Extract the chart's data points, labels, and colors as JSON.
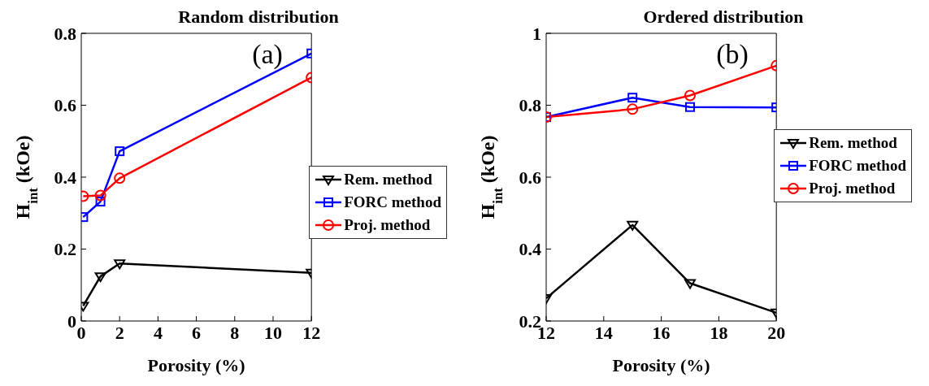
{
  "chart_data": [
    {
      "type": "line",
      "title": "Random distribution",
      "xlabel": "Porosity (%)",
      "ylabel": "H$_{int}$ (kOe)",
      "annotations": [
        "(a)"
      ],
      "x": [
        0.1,
        1,
        2,
        12
      ],
      "xlim": [
        0,
        12
      ],
      "xticks": [
        0,
        2,
        4,
        6,
        8,
        10,
        12
      ],
      "ylim": [
        0,
        0.8
      ],
      "yticks": [
        0,
        0.2,
        0.4,
        0.6,
        0.8
      ],
      "grid": false,
      "legend": "right",
      "line_style": "solid",
      "series": [
        {
          "name": "Rem. method",
          "color": "#000000",
          "marker": "triangle",
          "values": [
            0.042,
            0.124,
            0.16,
            0.134
          ]
        },
        {
          "name": "FORC method",
          "color": "#0000ff",
          "marker": "square",
          "values": [
            0.289,
            0.332,
            0.472,
            0.744
          ]
        },
        {
          "name": "Proj. method",
          "color": "#ff0000",
          "marker": "circle",
          "values": [
            0.347,
            0.349,
            0.397,
            0.677
          ]
        }
      ]
    },
    {
      "type": "line",
      "title": "Ordered distribution",
      "xlabel": "Porosity (%)",
      "ylabel": "H$_{int}$ (kOe)",
      "annotations": [
        "(b)"
      ],
      "x": [
        12,
        15,
        17,
        20
      ],
      "xlim": [
        12,
        20
      ],
      "xticks": [
        12,
        14,
        16,
        18,
        20
      ],
      "ylim": [
        0.2,
        1
      ],
      "yticks": [
        0.2,
        0.4,
        0.6,
        0.8,
        1
      ],
      "grid": false,
      "legend": "top right",
      "line_style": "solid",
      "series": [
        {
          "name": "Rem. method",
          "color": "#000000",
          "marker": "triangle",
          "values": [
            0.263,
            0.467,
            0.305,
            0.223
          ]
        },
        {
          "name": "FORC method",
          "color": "#0000ff",
          "marker": "square",
          "values": [
            0.767,
            0.821,
            0.795,
            0.794
          ]
        },
        {
          "name": "Proj. method",
          "color": "#ff0000",
          "marker": "circle",
          "values": [
            0.767,
            0.789,
            0.827,
            0.91
          ]
        }
      ]
    }
  ]
}
